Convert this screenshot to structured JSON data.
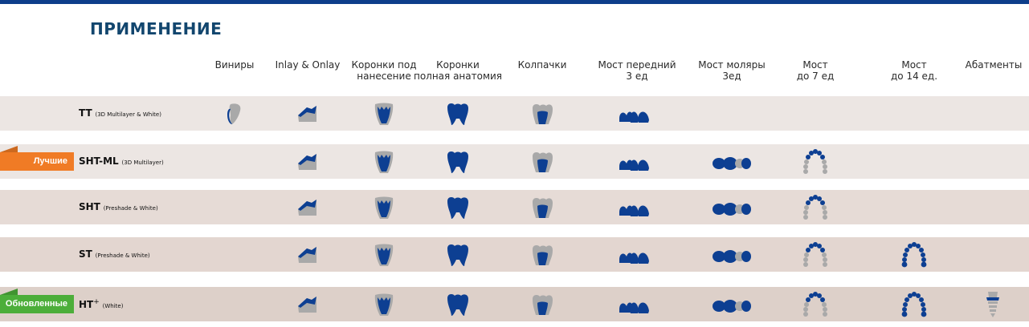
{
  "title": "ПРИМЕНЕНИЕ",
  "columns": [
    {
      "key": "veneer",
      "label": "Виниры"
    },
    {
      "key": "inlay",
      "label": "Inlay & Onlay"
    },
    {
      "key": "crown_facing",
      "label": "Коронки под\nнанесение"
    },
    {
      "key": "crown_full",
      "label": "Коронки\nполная анатомия"
    },
    {
      "key": "cap",
      "label": "Колпачки"
    },
    {
      "key": "bridge_front",
      "label": "Мост передний\n3 ед"
    },
    {
      "key": "bridge_molar",
      "label": "Мост моляры\n3ед"
    },
    {
      "key": "bridge7",
      "label": "Мост\nдо 7 ед"
    },
    {
      "key": "bridge14",
      "label": "Мост\nдо 14 ед."
    },
    {
      "key": "abutment",
      "label": "Абатменты"
    }
  ],
  "rows": [
    {
      "name": "TT",
      "sup": "",
      "note": "(3D Multilayer & White)",
      "badge": "",
      "band": "#ece6e3",
      "icons": [
        "veneer-icon",
        "inlay-icon",
        "crown-facing-icon",
        "crown-full-icon",
        "cap-icon",
        "bridge-front-icon",
        "",
        "",
        "",
        ""
      ]
    },
    {
      "name": "SHT-ML",
      "sup": "",
      "note": "(3D Multilayer)",
      "badge": "Лучшие",
      "badge_color": "#f07b25",
      "band": "#ece6e3",
      "icons": [
        "",
        "inlay-icon",
        "crown-facing-icon",
        "crown-full-icon",
        "cap-icon",
        "bridge-front-icon",
        "bridge-molar-icon",
        "bridge7-icon",
        "",
        ""
      ]
    },
    {
      "name": "SHT",
      "sup": "",
      "note": "(Preshade & White)",
      "badge": "",
      "band": "#e6dbd6",
      "icons": [
        "",
        "inlay-icon",
        "crown-facing-icon",
        "crown-full-icon",
        "cap-icon",
        "bridge-front-icon",
        "bridge-molar-icon",
        "bridge7-icon",
        "",
        ""
      ]
    },
    {
      "name": "ST",
      "sup": "",
      "note": "(Preshade & White)",
      "badge": "",
      "band": "#e3d6d0",
      "icons": [
        "",
        "inlay-icon",
        "crown-facing-icon",
        "crown-full-icon",
        "cap-icon",
        "bridge-front-icon",
        "bridge-molar-icon",
        "bridge7-icon",
        "bridge14-icon",
        ""
      ]
    },
    {
      "name": "HT",
      "sup": "+",
      "note": "(White)",
      "badge": "Обновленные",
      "badge_color": "#4cae3a",
      "band": "#ddd0c9",
      "icons": [
        "",
        "inlay-icon",
        "crown-facing-icon",
        "crown-full-icon",
        "cap-icon",
        "bridge-front-icon",
        "bridge-molar-icon",
        "bridge7-icon",
        "bridge14-icon",
        "abutment-icon"
      ]
    }
  ],
  "colors": {
    "blue": "#0d3f92",
    "gray": "#a9a9a9",
    "title": "#12466e",
    "topbar": "#0d3e8a"
  }
}
